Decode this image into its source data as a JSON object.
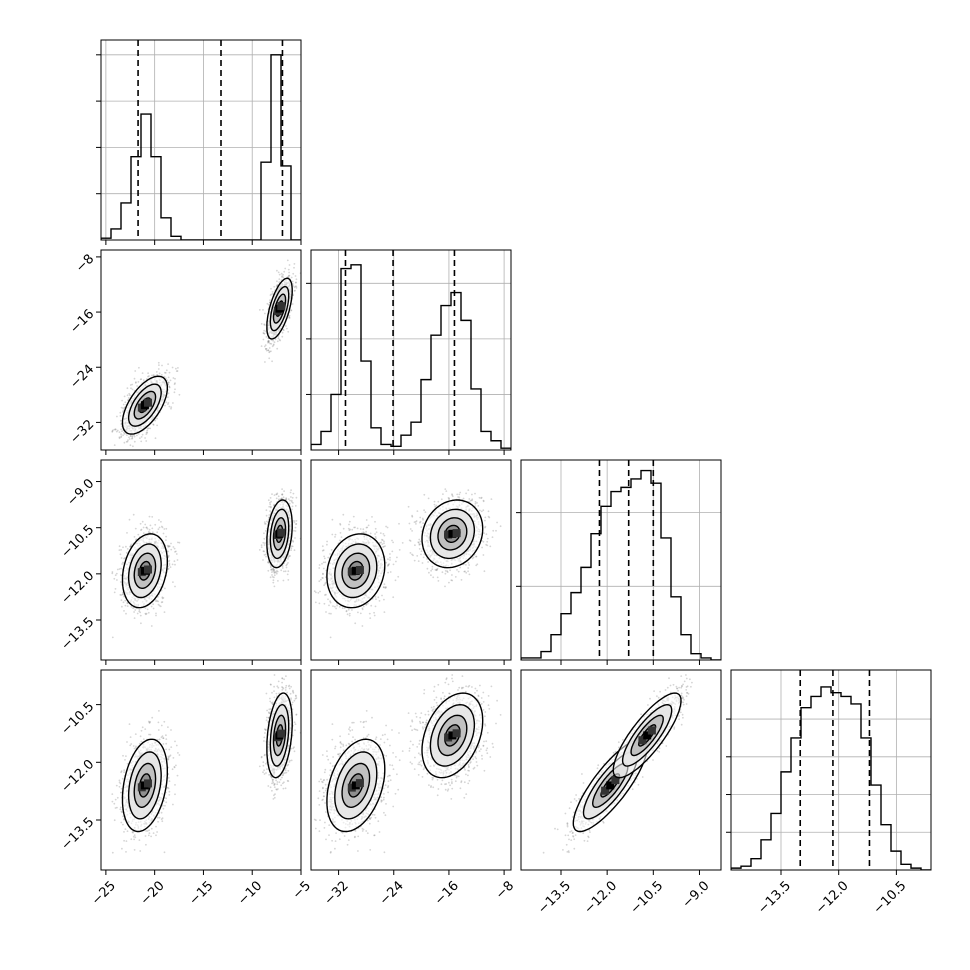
{
  "chart_data": {
    "type": "corner",
    "parameters": [
      "",
      "",
      "",
      ""
    ],
    "colors": {
      "line": "#000000",
      "grid": "#b0b0b0",
      "points": "#888888",
      "fill_dark": "#000000"
    },
    "grid": true,
    "ranges": [
      [
        -25.5,
        -5.0
      ],
      [
        -36.0,
        -7.0
      ],
      [
        -14.8,
        -8.3
      ],
      [
        -14.8,
        -9.6
      ]
    ],
    "ticks": [
      {
        "values": [
          -25,
          -20,
          -15,
          -10,
          -5
        ],
        "labels": [
          "−25",
          "−20",
          "−15",
          "−10",
          "−5"
        ]
      },
      {
        "values": [
          -32,
          -24,
          -16,
          -8
        ],
        "labels": [
          "−32",
          "−24",
          "−16",
          "−8"
        ]
      },
      {
        "values": [
          -13.5,
          -12.0,
          -10.5,
          -9.0
        ],
        "labels": [
          "−13.5",
          "−12.0",
          "−10.5",
          "−9.0"
        ]
      },
      {
        "values": [
          -13.5,
          -12.0,
          -10.5
        ],
        "labels": [
          "−13.5",
          "−12.0",
          "−10.5"
        ]
      }
    ],
    "quantiles": [
      [
        -21.7,
        -13.2,
        -6.9
      ],
      [
        -31.0,
        -24.1,
        -15.2
      ],
      [
        -12.25,
        -11.3,
        -10.5
      ],
      [
        -13.0,
        -12.15,
        -11.2
      ]
    ],
    "modes": [
      {
        "weight": 0.5,
        "mean": [
          -21.0,
          -29.5,
          -11.9,
          -12.6
        ],
        "sd": [
          1.15,
          2.1,
          0.6,
          0.6
        ]
      },
      {
        "weight": 0.5,
        "mean": [
          -7.2,
          -15.5,
          -10.7,
          -11.3
        ],
        "sd": [
          0.65,
          2.2,
          0.55,
          0.55
        ]
      }
    ],
    "histograms": [
      {
        "bins": [
          -25.5,
          -24.475,
          -23.45,
          -22.425,
          -21.4,
          -20.375,
          -19.35,
          -18.325,
          -17.3,
          -16.275,
          -15.25,
          -14.225,
          -13.2,
          -12.175,
          -11.15,
          -10.125,
          -9.1,
          -8.075,
          -7.05,
          -6.025,
          -5.0
        ],
        "counts": [
          0.01,
          0.06,
          0.2,
          0.45,
          0.68,
          0.45,
          0.12,
          0.02,
          0.0,
          0.0,
          0.0,
          0.0,
          0.0,
          0.0,
          0.0,
          0.0,
          0.0,
          0.0,
          0.0,
          0.0
        ],
        "counts_second_mode": [
          0,
          0,
          0,
          0,
          0,
          0,
          0,
          0,
          0,
          0,
          0,
          0,
          0,
          0,
          0,
          0,
          0.42,
          1.0,
          0.4,
          0.0
        ],
        "ylim": [
          0,
          1.08
        ],
        "yticks": [
          0.25,
          0.5,
          0.75,
          1.0
        ]
      },
      {
        "bins": [
          -36.0,
          -34.55,
          -33.1,
          -31.65,
          -30.2,
          -28.75,
          -27.3,
          -25.85,
          -24.4,
          -22.95,
          -21.5,
          -20.05,
          -18.6,
          -17.15,
          -15.7,
          -14.25,
          -12.8,
          -11.35,
          -9.9,
          -8.45,
          -7.0
        ],
        "counts": [
          0.03,
          0.1,
          0.3,
          0.98,
          1.0,
          0.48,
          0.12,
          0.03,
          0.02,
          0.08,
          0.15,
          0.38,
          0.62,
          0.78,
          0.85,
          0.7,
          0.33,
          0.1,
          0.05,
          0.01
        ],
        "ylim": [
          0,
          1.08
        ],
        "yticks": [
          0.3,
          0.6,
          0.9
        ]
      },
      {
        "bins": [
          -14.8,
          -14.475,
          -14.15,
          -13.825,
          -13.5,
          -13.175,
          -12.85,
          -12.525,
          -12.2,
          -11.875,
          -11.55,
          -11.225,
          -10.9,
          -10.575,
          -10.25,
          -9.925,
          -9.6,
          -9.275,
          -8.95,
          -8.625,
          -8.3
        ],
        "counts": [
          0.01,
          0.01,
          0.04,
          0.12,
          0.22,
          0.32,
          0.44,
          0.6,
          0.73,
          0.8,
          0.82,
          0.86,
          0.9,
          0.84,
          0.58,
          0.3,
          0.12,
          0.03,
          0.01,
          0.0
        ],
        "ylim": [
          0,
          0.95
        ],
        "yticks": [
          0.35,
          0.7
        ]
      },
      {
        "bins": [
          -14.8,
          -14.54,
          -14.28,
          -14.02,
          -13.76,
          -13.5,
          -13.24,
          -12.98,
          -12.72,
          -12.46,
          -12.2,
          -11.94,
          -11.68,
          -11.42,
          -11.16,
          -10.9,
          -10.64,
          -10.38,
          -10.12,
          -9.86,
          -9.6
        ],
        "counts": [
          0.01,
          0.02,
          0.06,
          0.16,
          0.3,
          0.52,
          0.7,
          0.86,
          0.92,
          0.97,
          0.94,
          0.92,
          0.88,
          0.7,
          0.45,
          0.24,
          0.1,
          0.03,
          0.01,
          0.0
        ],
        "ylim": [
          0,
          1.06
        ],
        "yticks": [
          0.2,
          0.4,
          0.6,
          0.8
        ]
      }
    ]
  }
}
